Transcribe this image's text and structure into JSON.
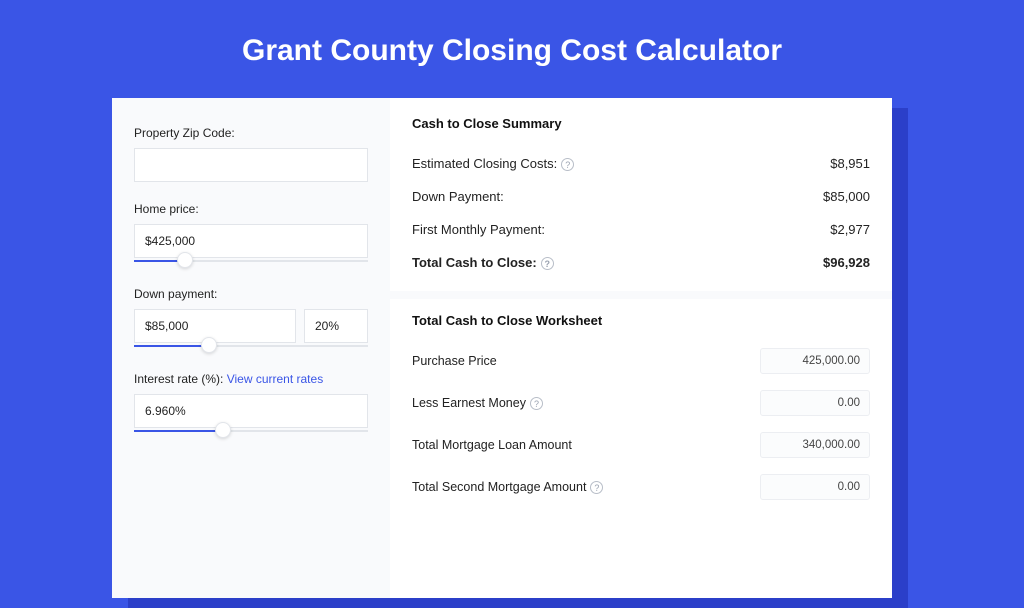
{
  "colors": {
    "page_background": "#3a55e6",
    "shadow": "#2b3fc9",
    "card_background": "#ffffff",
    "left_panel_background": "#f9fafc",
    "input_border": "#e2e5ea",
    "slider_fill": "#3a55e6",
    "link": "#3a55e6",
    "title_text": "#ffffff"
  },
  "title": "Grant County Closing Cost Calculator",
  "left": {
    "zip": {
      "label": "Property Zip Code:",
      "value": ""
    },
    "home_price": {
      "label": "Home price:",
      "value": "$425,000",
      "slider_pct": 22
    },
    "down_payment": {
      "label": "Down payment:",
      "amount": "$85,000",
      "percent": "20%",
      "slider_pct": 32
    },
    "interest": {
      "label": "Interest rate (%): ",
      "link_text": "View current rates",
      "value": "6.960%",
      "slider_pct": 38
    }
  },
  "summary": {
    "heading": "Cash to Close Summary",
    "rows": [
      {
        "label": "Estimated Closing Costs:",
        "help": true,
        "value": "$8,951",
        "bold": false
      },
      {
        "label": "Down Payment:",
        "help": false,
        "value": "$85,000",
        "bold": false
      },
      {
        "label": "First Monthly Payment:",
        "help": false,
        "value": "$2,977",
        "bold": false
      },
      {
        "label": "Total Cash to Close:",
        "help": true,
        "value": "$96,928",
        "bold": true
      }
    ]
  },
  "worksheet": {
    "heading": "Total Cash to Close Worksheet",
    "rows": [
      {
        "label": "Purchase Price",
        "help": false,
        "value": "425,000.00"
      },
      {
        "label": "Less Earnest Money",
        "help": true,
        "value": "0.00"
      },
      {
        "label": "Total Mortgage Loan Amount",
        "help": false,
        "value": "340,000.00"
      },
      {
        "label": "Total Second Mortgage Amount",
        "help": true,
        "value": "0.00"
      }
    ]
  }
}
